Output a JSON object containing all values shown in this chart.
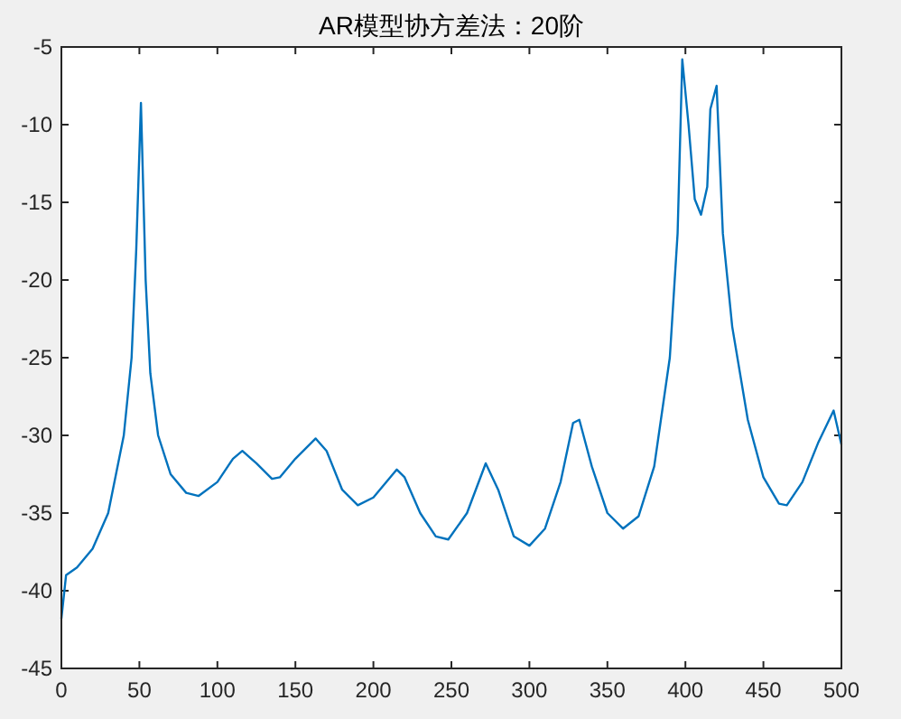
{
  "chart_data": {
    "type": "line",
    "title": "AR模型协方差法：20阶",
    "x": [
      0,
      3,
      10,
      20,
      30,
      40,
      45,
      48,
      51,
      54,
      57,
      62,
      70,
      80,
      88,
      100,
      110,
      116,
      125,
      135,
      140,
      150,
      163,
      170,
      180,
      190,
      200,
      215,
      220,
      230,
      240,
      248,
      260,
      272,
      280,
      290,
      300,
      310,
      320,
      328,
      332,
      340,
      350,
      360,
      370,
      380,
      390,
      395,
      398,
      402,
      406,
      410,
      414,
      416,
      420,
      424,
      430,
      440,
      450,
      460,
      465,
      475,
      485,
      495,
      500
    ],
    "series": [
      {
        "color": "#0072bd",
        "values": [
          -41.8,
          -39.0,
          -38.5,
          -37.3,
          -35,
          -30,
          -25,
          -18,
          -8.6,
          -20,
          -26,
          -30,
          -32.5,
          -33.7,
          -33.9,
          -33,
          -31.5,
          -31,
          -31.8,
          -32.8,
          -32.7,
          -31.5,
          -30.2,
          -31,
          -33.5,
          -34.5,
          -34,
          -32.2,
          -32.7,
          -35,
          -36.5,
          -36.7,
          -35,
          -31.8,
          -33.5,
          -36.5,
          -37.1,
          -36,
          -33,
          -29.2,
          -29,
          -32,
          -35,
          -36,
          -35.2,
          -32,
          -25,
          -17,
          -5.8,
          -10,
          -14.8,
          -15.8,
          -14,
          -9,
          -7.5,
          -17,
          -23,
          -29,
          -32.7,
          -34.4,
          -34.5,
          -33,
          -30.5,
          -28.4,
          -30.6
        ]
      }
    ],
    "xlim": [
      0,
      500
    ],
    "ylim": [
      -45,
      -5
    ],
    "xticks": [
      0,
      50,
      100,
      150,
      200,
      250,
      300,
      350,
      400,
      450,
      500
    ],
    "yticks": [
      -45,
      -40,
      -35,
      -30,
      -25,
      -20,
      -15,
      -10,
      -5
    ]
  }
}
